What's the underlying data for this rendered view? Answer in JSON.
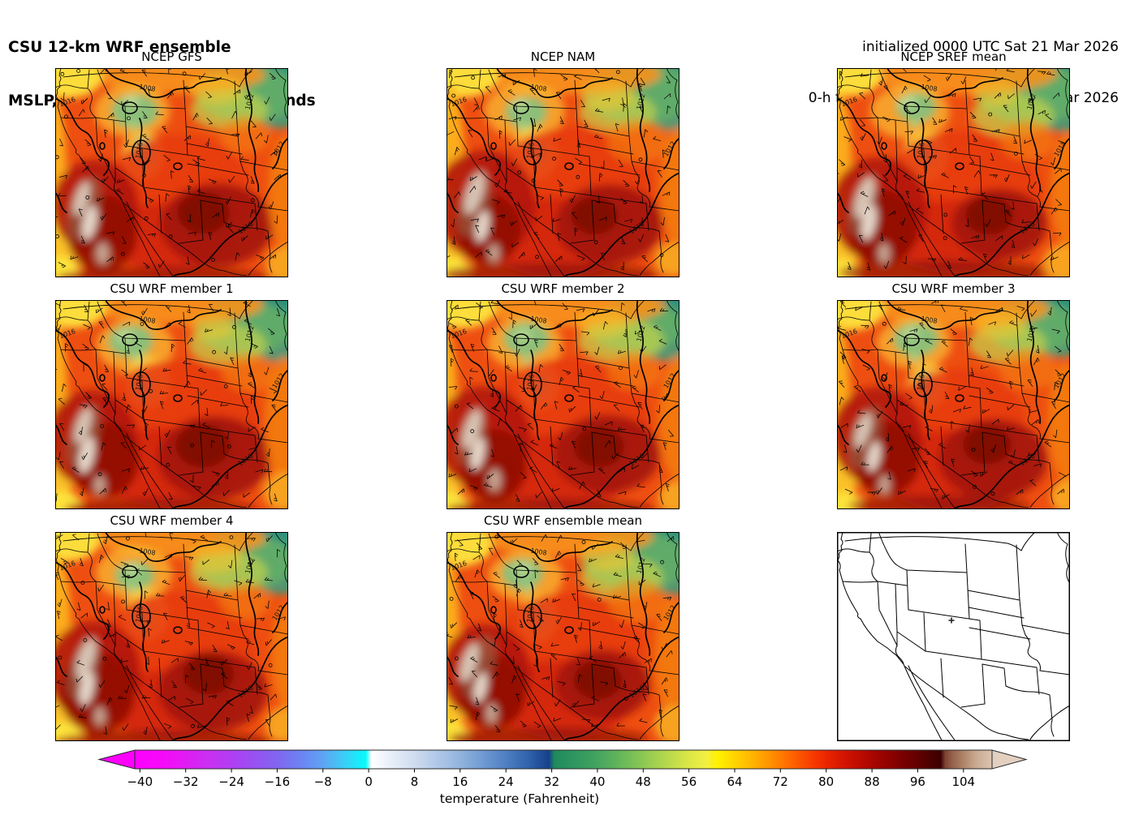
{
  "header": {
    "title_line1": "CSU 12-km WRF ensemble",
    "title_line2": "MSLP, 2-m temperature, 10-m winds",
    "init_line": "initialized 0000 UTC Sat 21 Mar 2026",
    "valid_line": "0-h forecast valid 0000 UTC Sat 21 Mar 2026"
  },
  "panels": [
    {
      "title": "NCEP GFS",
      "kind": "model"
    },
    {
      "title": "NCEP NAM",
      "kind": "model"
    },
    {
      "title": "NCEP SREF mean",
      "kind": "model"
    },
    {
      "title": "CSU WRF member 1",
      "kind": "model"
    },
    {
      "title": "CSU WRF member 2",
      "kind": "model"
    },
    {
      "title": "CSU WRF member 3",
      "kind": "model"
    },
    {
      "title": "CSU WRF member 4",
      "kind": "model"
    },
    {
      "title": "CSU WRF ensemble mean",
      "kind": "model"
    },
    {
      "title": "",
      "kind": "reference",
      "marker": "+"
    }
  ],
  "contour_labels": [
    "1016",
    "1008",
    "1012",
    "1016",
    "1012",
    "1016"
  ],
  "colorbar": {
    "label": "temperature (Fahrenheit)",
    "ticks": [
      "−40",
      "−32",
      "−24",
      "−16",
      "−8",
      "0",
      "8",
      "16",
      "24",
      "32",
      "40",
      "48",
      "56",
      "64",
      "72",
      "80",
      "88",
      "96",
      "104"
    ],
    "left_arrow_color": "#ff00ff",
    "right_arrow_color": "#e3d0c0",
    "stops": [
      [
        -40.9,
        "#ff00ff"
      ],
      [
        -36,
        "#f50af8"
      ],
      [
        -32,
        "#e01cf4"
      ],
      [
        -28,
        "#c930f2"
      ],
      [
        -24,
        "#b03ef2"
      ],
      [
        -20,
        "#9852f1"
      ],
      [
        -16,
        "#8066f0"
      ],
      [
        -12,
        "#6c82f2"
      ],
      [
        -8,
        "#5fa4f4"
      ],
      [
        -4,
        "#38d0f6"
      ],
      [
        -0.5,
        "#06fbfb"
      ],
      [
        0.5,
        "#ffffff"
      ],
      [
        3,
        "#eef3fb"
      ],
      [
        8,
        "#cfdcf0"
      ],
      [
        12,
        "#b0c8e8"
      ],
      [
        16,
        "#92b4de"
      ],
      [
        20,
        "#6f9ad2"
      ],
      [
        24,
        "#4f7fc2"
      ],
      [
        28,
        "#2f62ab"
      ],
      [
        31.5,
        "#16418a"
      ],
      [
        32.5,
        "#1f8a5e"
      ],
      [
        36,
        "#2f9660"
      ],
      [
        40,
        "#44a45f"
      ],
      [
        44,
        "#65b65a"
      ],
      [
        48,
        "#8cc853"
      ],
      [
        52,
        "#b5d84c"
      ],
      [
        56,
        "#dbe746"
      ],
      [
        59,
        "#f2ef42"
      ],
      [
        61,
        "#fff200"
      ],
      [
        64,
        "#ffd400"
      ],
      [
        66,
        "#ffc000"
      ],
      [
        68,
        "#ffaa00"
      ],
      [
        70,
        "#ff9400"
      ],
      [
        72,
        "#ff7c00"
      ],
      [
        74,
        "#ff6400"
      ],
      [
        76,
        "#fb4d00"
      ],
      [
        78,
        "#f53800"
      ],
      [
        80,
        "#eb2600"
      ],
      [
        82,
        "#dc1a00"
      ],
      [
        84,
        "#cc1100"
      ],
      [
        86,
        "#bb0b00"
      ],
      [
        88,
        "#aa0600"
      ],
      [
        90,
        "#980300"
      ],
      [
        92,
        "#860100"
      ],
      [
        94,
        "#740000"
      ],
      [
        96,
        "#620000"
      ],
      [
        98,
        "#4f0000"
      ],
      [
        100,
        "#3b0000"
      ],
      [
        100.8,
        "#7c4232"
      ],
      [
        102,
        "#94604b"
      ],
      [
        104,
        "#af8468"
      ],
      [
        106,
        "#c7a78e"
      ],
      [
        109,
        "#dcc5b3"
      ]
    ]
  },
  "map_palette": {
    "base_warm": "#f04f12",
    "hot_core": "#7c0a04",
    "dark_red": "#a61308",
    "cool_corner_teal": "#2c937d",
    "mountain_green": "#8cc27c",
    "terrain_tan": "#d9c6b8",
    "coast_yellow": "#ffd92e"
  },
  "chart_data": {
    "type": "heatmap",
    "title": "CSU 12-km WRF ensemble",
    "subtitle": "MSLP, 2-m temperature, 10-m winds",
    "initialized": "0000 UTC Sat 21 Mar 2026",
    "forecast": "0-h forecast valid 0000 UTC Sat 21 Mar 2026",
    "grid": {
      "rows": 3,
      "cols": 3
    },
    "panels": [
      "NCEP GFS",
      "NCEP NAM",
      "NCEP SREF mean",
      "CSU WRF member 1",
      "CSU WRF member 2",
      "CSU WRF member 3",
      "CSU WRF member 4",
      "CSU WRF ensemble mean"
    ],
    "fields": [
      "mean sea-level pressure (black contours, hPa)",
      "2-m temperature (color shading, Fahrenheit)",
      "10-m winds (barbs)"
    ],
    "region": "western and central United States",
    "colorbar_label": "temperature (Fahrenheit)",
    "colorbar_ticks": [
      -40,
      -32,
      -24,
      -16,
      -8,
      0,
      8,
      16,
      24,
      32,
      40,
      48,
      56,
      64,
      72,
      80,
      88,
      96,
      104
    ],
    "colorbar_range_f": [
      -40,
      104
    ],
    "colorbar_extend": "both",
    "mslp_contour_labels_hPa": [
      1008,
      1012,
      1016
    ],
    "legend_position": "bottom"
  }
}
